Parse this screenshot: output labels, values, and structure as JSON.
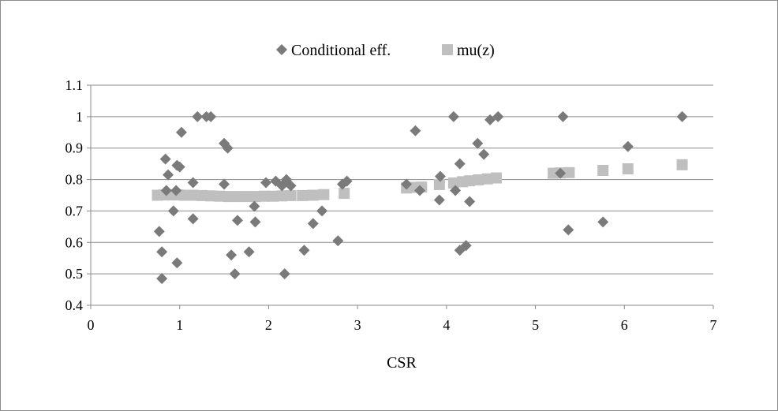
{
  "chart_data": {
    "type": "scatter",
    "xlabel": "CSR",
    "ylabel": "",
    "xlim": [
      0,
      7
    ],
    "ylim": [
      0.4,
      1.1
    ],
    "x_ticks": [
      "0",
      "1",
      "2",
      "3",
      "4",
      "5",
      "6",
      "7"
    ],
    "y_ticks": [
      "0.4",
      "0.5",
      "0.6",
      "0.7",
      "0.8",
      "0.9",
      "1",
      "1.1"
    ],
    "grid": "horizontal",
    "legend_position": "top",
    "series": [
      {
        "name": "Conditional eff.",
        "marker": "diamond",
        "color": "#7a7a7a",
        "points": [
          [
            0.77,
            0.635
          ],
          [
            0.8,
            0.57
          ],
          [
            0.8,
            0.485
          ],
          [
            0.84,
            0.865
          ],
          [
            0.85,
            0.765
          ],
          [
            0.87,
            0.815
          ],
          [
            0.93,
            0.7
          ],
          [
            0.96,
            0.765
          ],
          [
            0.97,
            0.535
          ],
          [
            0.97,
            0.845
          ],
          [
            1.0,
            0.84
          ],
          [
            1.02,
            0.95
          ],
          [
            1.15,
            0.79
          ],
          [
            1.15,
            0.675
          ],
          [
            1.2,
            1.0
          ],
          [
            1.3,
            1.0
          ],
          [
            1.35,
            1.0
          ],
          [
            1.5,
            0.915
          ],
          [
            1.5,
            0.785
          ],
          [
            1.54,
            0.9
          ],
          [
            1.58,
            0.56
          ],
          [
            1.62,
            0.5
          ],
          [
            1.65,
            0.67
          ],
          [
            1.78,
            0.57
          ],
          [
            1.84,
            0.715
          ],
          [
            1.85,
            0.665
          ],
          [
            1.97,
            0.79
          ],
          [
            2.08,
            0.795
          ],
          [
            2.15,
            0.78
          ],
          [
            2.2,
            0.8
          ],
          [
            2.18,
            0.5
          ],
          [
            2.25,
            0.78
          ],
          [
            2.4,
            0.575
          ],
          [
            2.5,
            0.66
          ],
          [
            2.6,
            0.7
          ],
          [
            2.78,
            0.605
          ],
          [
            2.83,
            0.785
          ],
          [
            2.88,
            0.795
          ],
          [
            3.55,
            0.785
          ],
          [
            3.65,
            0.955
          ],
          [
            3.7,
            0.765
          ],
          [
            3.92,
            0.735
          ],
          [
            3.93,
            0.81
          ],
          [
            4.08,
            1.0
          ],
          [
            4.1,
            0.765
          ],
          [
            4.15,
            0.85
          ],
          [
            4.15,
            0.575
          ],
          [
            4.22,
            0.59
          ],
          [
            4.26,
            0.73
          ],
          [
            4.35,
            0.915
          ],
          [
            4.42,
            0.88
          ],
          [
            4.49,
            0.99
          ],
          [
            4.58,
            1.0
          ],
          [
            5.28,
            0.82
          ],
          [
            5.31,
            1.0
          ],
          [
            5.37,
            0.64
          ],
          [
            5.76,
            0.665
          ],
          [
            6.04,
            0.905
          ],
          [
            6.65,
            1.0
          ]
        ]
      },
      {
        "name": "mu(z)",
        "marker": "square",
        "color": "#bfbfbf",
        "points": [
          [
            0.75,
            0.75
          ],
          [
            0.82,
            0.751
          ],
          [
            0.9,
            0.751
          ],
          [
            0.98,
            0.751
          ],
          [
            1.05,
            0.75
          ],
          [
            1.15,
            0.75
          ],
          [
            1.25,
            0.749
          ],
          [
            1.35,
            0.748
          ],
          [
            1.45,
            0.747
          ],
          [
            1.55,
            0.746
          ],
          [
            1.65,
            0.746
          ],
          [
            1.75,
            0.746
          ],
          [
            1.85,
            0.746
          ],
          [
            1.95,
            0.747
          ],
          [
            2.05,
            0.747
          ],
          [
            2.15,
            0.748
          ],
          [
            2.25,
            0.749
          ],
          [
            2.38,
            0.749
          ],
          [
            2.5,
            0.75
          ],
          [
            2.62,
            0.752
          ],
          [
            2.85,
            0.756
          ],
          [
            3.55,
            0.773
          ],
          [
            3.65,
            0.775
          ],
          [
            3.72,
            0.776
          ],
          [
            3.92,
            0.784
          ],
          [
            4.08,
            0.789
          ],
          [
            4.18,
            0.793
          ],
          [
            4.26,
            0.796
          ],
          [
            4.36,
            0.799
          ],
          [
            4.46,
            0.802
          ],
          [
            4.56,
            0.805
          ],
          [
            5.2,
            0.82
          ],
          [
            5.28,
            0.821
          ],
          [
            5.38,
            0.822
          ],
          [
            5.76,
            0.829
          ],
          [
            6.04,
            0.834
          ],
          [
            6.65,
            0.847
          ]
        ]
      }
    ]
  }
}
